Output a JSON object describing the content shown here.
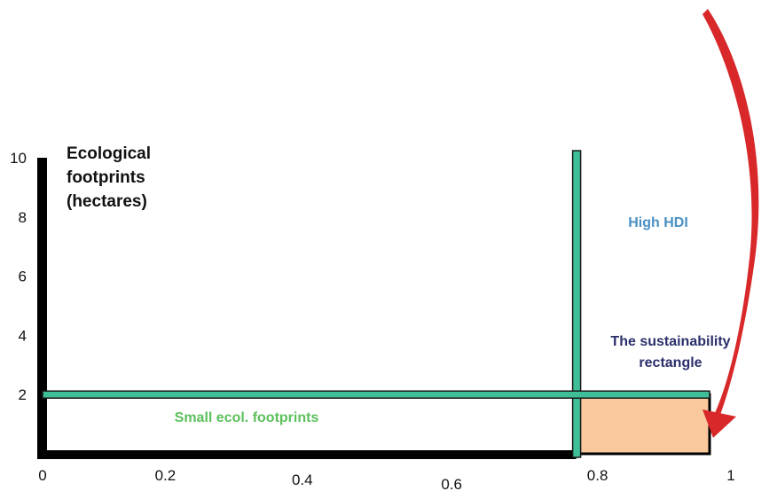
{
  "chart_data": {
    "type": "area",
    "title": "",
    "ylabel_lines": [
      "Ecological",
      "footprints",
      "(hectares)"
    ],
    "xlabel": "",
    "xlim": [
      0,
      1
    ],
    "ylim": [
      0,
      10
    ],
    "x_ticks": [
      "0",
      "0.2",
      "0.4",
      "0.6",
      "0.8",
      "1"
    ],
    "y_ticks": [
      "2",
      "4",
      "6",
      "8",
      "10"
    ],
    "thresholds": {
      "hdi": 0.8,
      "footprint": 2
    },
    "sustainability_rectangle": {
      "x": [
        0.8,
        1
      ],
      "y": [
        0,
        2
      ]
    },
    "annotations": {
      "high_hdi": "High HDI",
      "sustainability_line1": "The sustainability",
      "sustainability_line2": "rectangle",
      "small_footprints": "Small ecol. footprints"
    },
    "grid": false,
    "legend": "none",
    "colors": {
      "axis": "#000000",
      "threshold_line": "#3fbf97",
      "rectangle_fill": "#f9c99d",
      "high_hdi_text": "#4a90c4",
      "sustainability_text": "#2b2f6b",
      "small_footprints_text": "#5cc05c",
      "arrow": "#d8282a"
    }
  }
}
